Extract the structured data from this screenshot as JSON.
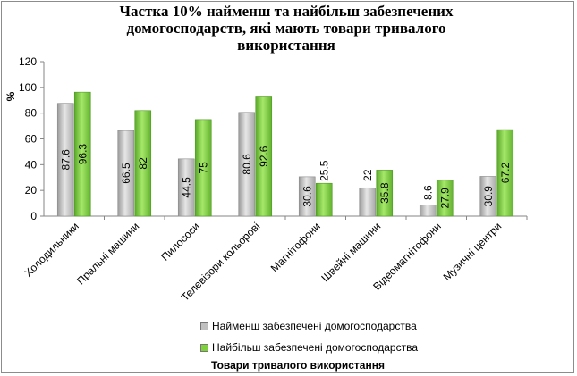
{
  "chart_data": {
    "type": "bar",
    "title_lines": [
      "Частка 10% найменш та найбільш забезпечених",
      "домогосподарств, які мають товари тривалого",
      "використання"
    ],
    "ylabel": "%",
    "xlabel": "Товари тривалого використання",
    "ylim": [
      0,
      120
    ],
    "yticks": [
      0,
      20,
      40,
      60,
      80,
      100,
      120
    ],
    "categories": [
      "Холодильники",
      "Пральні машини",
      "Пилососи",
      "Телевізори кольорові",
      "Магнітофони",
      "Швейні машини",
      "Відеомагнітофони",
      "Музичні центри"
    ],
    "series": [
      {
        "name": "Найменш забезпечені домогосподарства",
        "color": "#c0c0c0",
        "values": [
          87.6,
          66.5,
          44.5,
          80.6,
          30.6,
          22,
          8.6,
          30.9
        ]
      },
      {
        "name": "Найбільш забезпечені домогосподарства",
        "color": "#7fd13b",
        "values": [
          96.3,
          82,
          75,
          92.6,
          25.5,
          35.8,
          27.9,
          67.2
        ]
      }
    ],
    "legend_position": "bottom",
    "grid": false
  }
}
